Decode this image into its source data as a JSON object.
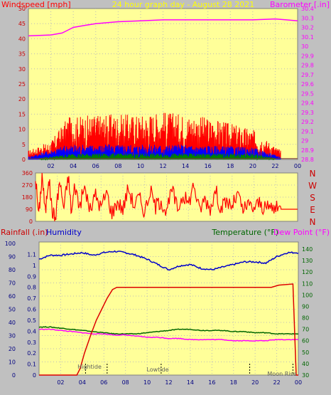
{
  "title": "24 hour graph day - August 28 2021",
  "colors": {
    "bg": "#c0c0c0",
    "plot": "#ffff99",
    "grid": "#999999",
    "wind_label": "#ff0000",
    "baro_label": "#ff00ff",
    "title": "#ffff00",
    "dir_label": "#cc0000",
    "rain_label": "#cc0000",
    "humidity_label": "#0000cc",
    "temp_label": "#006600",
    "dew_label": "#ff00ff"
  },
  "chart_data": [
    {
      "id": "wind-baro",
      "type": "line",
      "left_axis": {
        "label": "Windspeed [mph]",
        "range": [
          0,
          50
        ],
        "ticks": [
          "0",
          "5",
          "10",
          "15",
          "20",
          "25",
          "30",
          "35",
          "40",
          "45",
          "50"
        ]
      },
      "right_axis": {
        "label": "Barometer [.in]",
        "range": [
          28.8,
          30.4
        ],
        "ticks": [
          "28.8",
          "28.9",
          "29",
          "29.1",
          "29.2",
          "29.3",
          "29.4",
          "29.5",
          "29.6",
          "29.7",
          "29.8",
          "29.9",
          "30",
          "30.1",
          "30.2",
          "30.3",
          "30.4"
        ]
      },
      "x_ticks": [
        "02",
        "04",
        "06",
        "08",
        "10",
        "12",
        "14",
        "16",
        "18",
        "20",
        "22",
        "00"
      ],
      "series": [
        {
          "color": "#ff00ff",
          "axis": "right",
          "x": [
            0,
            2,
            3,
            3.5,
            4,
            5,
            6,
            8,
            10,
            12,
            14,
            16,
            18,
            20,
            22,
            23,
            24
          ],
          "y": [
            30.11,
            30.12,
            30.14,
            30.17,
            30.2,
            30.22,
            30.24,
            30.26,
            30.27,
            30.28,
            30.28,
            30.28,
            30.28,
            30.28,
            30.29,
            30.28,
            30.27
          ]
        }
      ],
      "bands": [
        {
          "color": "#ff0000",
          "axis": "left",
          "start": 0,
          "end": 22.5,
          "peak_envelope": {
            "x": [
              0,
              2,
              3.5,
              6,
              10,
              12,
              16,
              20,
              22.5
            ],
            "y": [
              3,
              6,
              14,
              15,
              15,
              16,
              14,
              10,
              3
            ]
          }
        },
        {
          "color": "#0000ff",
          "axis": "left",
          "start": 0,
          "end": 22.5,
          "peak_envelope": {
            "x": [
              0,
              3.5,
              8,
              14,
              20,
              22.5
            ],
            "y": [
              1,
              5,
              5,
              5,
              4,
              1
            ]
          }
        },
        {
          "color": "#008000",
          "axis": "left",
          "start": 1,
          "end": 22,
          "peak_envelope": {
            "x": [
              1,
              4,
              12,
              20,
              22
            ],
            "y": [
              0.5,
              2,
              2,
              2,
              0.5
            ]
          }
        }
      ],
      "extra_lines": [
        {
          "color": "#804040",
          "axis": "left",
          "x": [
            0,
            24
          ],
          "y": [
            0.3,
            0.3
          ]
        }
      ]
    },
    {
      "id": "wind-direction",
      "type": "line",
      "left_axis": {
        "range": [
          0,
          360
        ],
        "ticks": [
          "0",
          "90",
          "180",
          "270",
          "360"
        ]
      },
      "right_axis": {
        "ticks": [
          "N",
          "W",
          "S",
          "E",
          "N"
        ]
      },
      "series": [
        {
          "color": "#ff0000",
          "x": [
            0,
            0.3,
            0.6,
            0.9,
            1.2,
            1.5,
            1.8,
            2.2,
            2.6,
            3.0,
            3.3,
            3.6,
            4.0,
            4.5,
            5.0,
            5.5,
            6.0,
            6.5,
            7.0,
            7.5,
            8.0,
            8.5,
            9.0,
            9.5,
            10.0,
            10.5,
            11.0,
            11.5,
            12.0,
            12.5,
            13.0,
            13.5,
            14.0,
            14.5,
            15.0,
            15.5,
            16.0,
            16.5,
            17.0,
            17.5,
            18.0,
            18.5,
            19.0,
            19.5,
            20.0,
            20.5,
            21.0,
            21.5,
            22.0,
            22.5,
            24.0
          ],
          "y": [
            330,
            40,
            350,
            60,
            340,
            90,
            20,
            300,
            100,
            340,
            60,
            280,
            110,
            250,
            80,
            200,
            100,
            220,
            60,
            150,
            90,
            250,
            120,
            180,
            70,
            230,
            110,
            160,
            60,
            240,
            90,
            200,
            130,
            280,
            80,
            170,
            100,
            230,
            90,
            150,
            110,
            200,
            80,
            120,
            100,
            140,
            90,
            110,
            95,
            90,
            90
          ]
        }
      ]
    },
    {
      "id": "rain-humidity-temp",
      "type": "line",
      "left_axis_outer": {
        "label": "Rainfall (.in)",
        "range": [
          0,
          100
        ],
        "ticks": [
          "0",
          "10",
          "20",
          "30",
          "40",
          "50",
          "60",
          "70",
          "80",
          "90",
          "100"
        ]
      },
      "left_axis_inner": {
        "label": "Humidity",
        "range": [
          0,
          1.2
        ],
        "ticks": [
          "0",
          "0.1",
          "0.2",
          "0.3",
          "0.4",
          "0.5",
          "0.6",
          "0.7",
          "0.8",
          "0.9",
          "1",
          "1.1"
        ]
      },
      "right_axis_outer": {
        "label": "Temperature (°F)",
        "range": [
          30,
          145
        ],
        "ticks": [
          "30",
          "40",
          "50",
          "60",
          "70",
          "80",
          "90",
          "100",
          "110",
          "120",
          "130",
          "140"
        ]
      },
      "right_axis_label": "Dew Point (°F)",
      "x_ticks": [
        "02",
        "04",
        "06",
        "08",
        "10",
        "12",
        "14",
        "16",
        "18",
        "20",
        "22",
        "00"
      ],
      "annotations": [
        "Hightide",
        "Lowtide",
        "Moon Rise"
      ],
      "series": [
        {
          "name": "Humidity",
          "color": "#0000cc",
          "axis": "outer",
          "x": [
            0,
            1,
            2,
            3,
            4,
            5,
            6,
            7,
            8,
            9,
            10,
            11,
            12,
            13,
            14,
            15,
            16,
            17,
            18,
            19,
            20,
            21,
            22,
            23,
            24
          ],
          "y": [
            88,
            91,
            91,
            92,
            93,
            91,
            93,
            94,
            93,
            91,
            88,
            84,
            80,
            83,
            84,
            81,
            80,
            82,
            84,
            86,
            86,
            85,
            90,
            93,
            93
          ]
        },
        {
          "name": "Temperature (°F)",
          "color": "#006600",
          "axis": "right",
          "x": [
            0,
            1,
            2,
            3,
            4,
            5,
            6,
            7,
            8,
            9,
            10,
            11,
            12,
            13,
            14,
            15,
            16,
            17,
            18,
            19,
            20,
            21,
            22,
            23,
            24
          ],
          "y": [
            72,
            72,
            71,
            70,
            69,
            68,
            67,
            66,
            66,
            66,
            67,
            68,
            69,
            70,
            70,
            69,
            69,
            69,
            68,
            68,
            67,
            67,
            66,
            66,
            66
          ]
        },
        {
          "name": "Dew Point (°F)",
          "color": "#ff00ff",
          "axis": "right",
          "x": [
            0,
            1,
            2,
            3,
            4,
            5,
            6,
            7,
            8,
            9,
            10,
            11,
            12,
            13,
            14,
            15,
            16,
            17,
            18,
            19,
            20,
            21,
            22,
            23,
            24
          ],
          "y": [
            70,
            70,
            69,
            68,
            67,
            66,
            66,
            65,
            65,
            64,
            63,
            63,
            62,
            62,
            61,
            61,
            61,
            61,
            60,
            60,
            60,
            60,
            61,
            61,
            61
          ]
        },
        {
          "name": "Rainfall (.in)",
          "color": "#dd0000",
          "axis": "inner",
          "x": [
            0,
            3.5,
            3.8,
            4.2,
            4.8,
            5.3,
            5.8,
            6.3,
            6.8,
            7.2,
            12,
            16,
            20,
            21.5,
            22.2,
            23.5,
            23.8,
            24
          ],
          "y": [
            0,
            0,
            0.06,
            0.2,
            0.37,
            0.5,
            0.6,
            0.7,
            0.78,
            0.8,
            0.8,
            0.8,
            0.8,
            0.8,
            0.82,
            0.83,
            0,
            0
          ]
        }
      ],
      "tide_markers_hours": [
        4.3,
        6.3,
        11.3,
        19.5,
        23.5
      ]
    }
  ]
}
